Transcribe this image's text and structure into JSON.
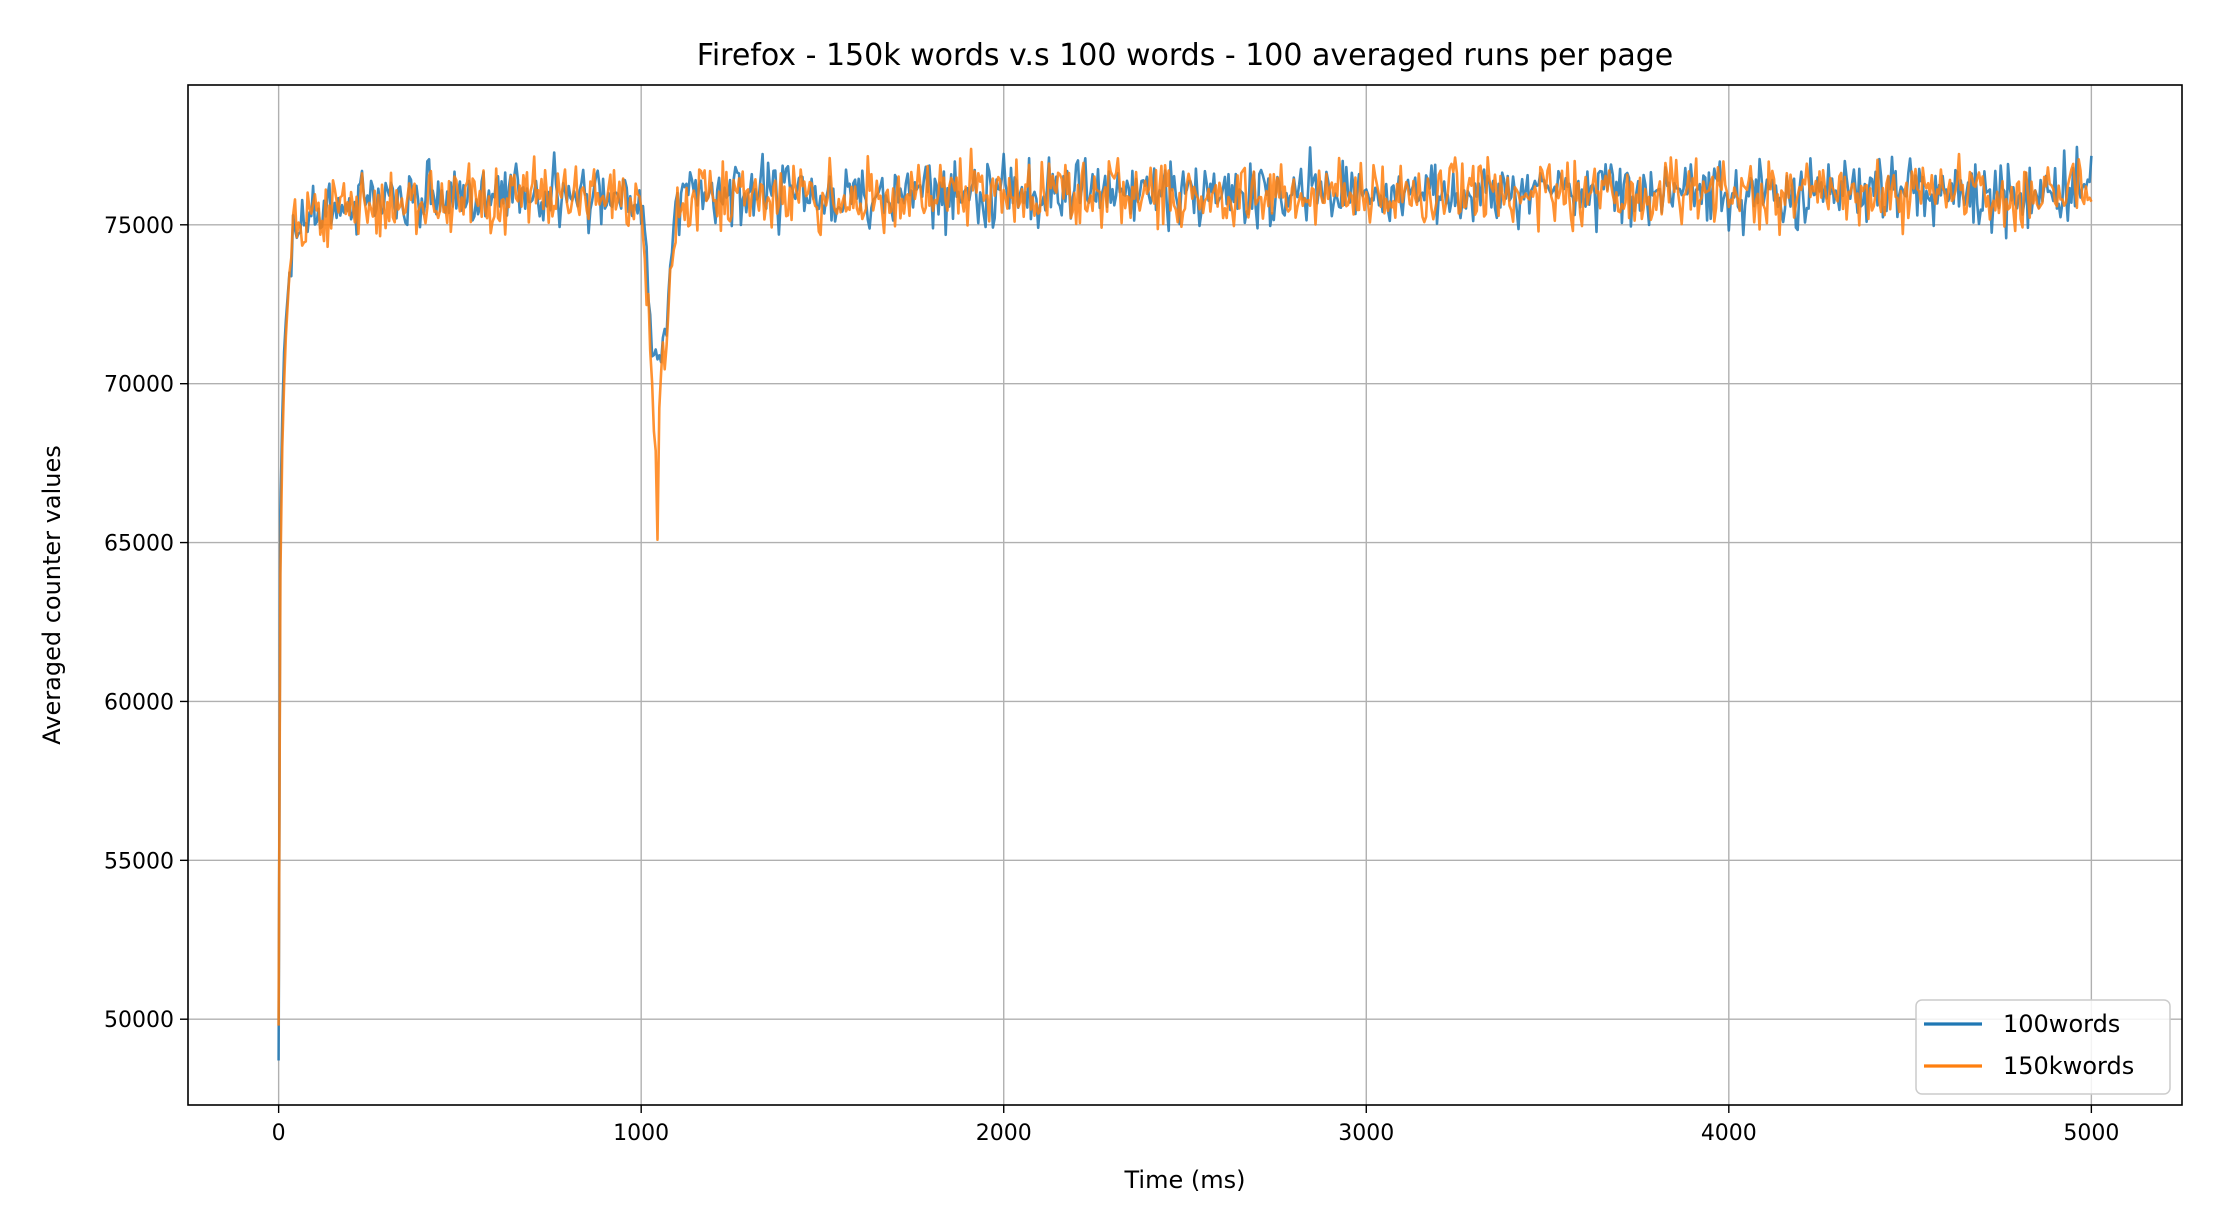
{
  "chart_data": {
    "type": "line",
    "title": "Firefox - 150k words v.s 100 words - 100 averaged runs per page",
    "xlabel": "Time (ms)",
    "ylabel": "Averaged counter values",
    "xlim": [
      -250,
      5250
    ],
    "ylim": [
      47300,
      79400
    ],
    "xticks": [
      0,
      1000,
      2000,
      3000,
      4000,
      5000
    ],
    "yticks": [
      50000,
      55000,
      60000,
      65000,
      70000,
      75000
    ],
    "grid": true,
    "legend_position": "lower-right",
    "series": [
      {
        "name": "100words",
        "color": "#1f77b4",
        "baseline": 76000,
        "noise": 520,
        "x": [
          0,
          2,
          5,
          10,
          15,
          20,
          30,
          40,
          60,
          80,
          120,
          200,
          300,
          400,
          500,
          600,
          700,
          800,
          900,
          990,
          1000,
          1010,
          1020,
          1030,
          1040,
          1050,
          1060,
          1070,
          1080,
          1100,
          1150,
          1300,
          1500,
          1800,
          2300,
          2500,
          3000,
          3500,
          4000,
          4500,
          5000
        ],
        "values": [
          48700,
          58000,
          66000,
          69000,
          71000,
          72000,
          73500,
          74500,
          75000,
          75300,
          75500,
          75600,
          75700,
          75800,
          75900,
          76000,
          76000,
          76000,
          76000,
          76000,
          75800,
          74500,
          73000,
          71500,
          70500,
          70800,
          71500,
          72500,
          73500,
          75500,
          76000,
          76000,
          76000,
          76000,
          76200,
          76000,
          76000,
          76000,
          76000,
          76000,
          76000
        ]
      },
      {
        "name": "150kwords",
        "color": "#ff7f0e",
        "baseline": 76000,
        "noise": 520,
        "x": [
          0,
          2,
          5,
          10,
          15,
          20,
          30,
          40,
          60,
          80,
          120,
          200,
          300,
          400,
          500,
          600,
          700,
          800,
          900,
          990,
          1000,
          1010,
          1020,
          1030,
          1040,
          1045,
          1050,
          1060,
          1070,
          1080,
          1100,
          1150,
          1300,
          1500,
          1800,
          2300,
          2500,
          3000,
          3500,
          4000,
          4500,
          5000
        ],
        "values": [
          49800,
          56000,
          64000,
          68000,
          70000,
          71500,
          73500,
          74500,
          75000,
          75300,
          75500,
          75600,
          75700,
          75800,
          75900,
          76000,
          76000,
          76000,
          76000,
          76000,
          75500,
          74000,
          72500,
          71000,
          68000,
          64800,
          69000,
          70500,
          71500,
          73000,
          75500,
          76000,
          76000,
          75800,
          76000,
          76000,
          76000,
          76000,
          76000,
          76000,
          76000,
          76000
        ]
      }
    ]
  }
}
